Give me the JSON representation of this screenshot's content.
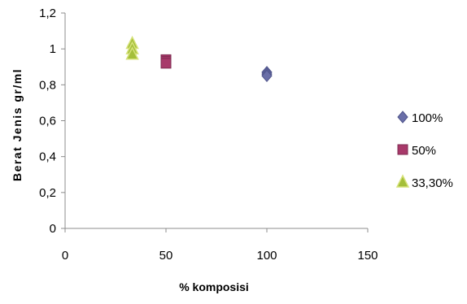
{
  "chart_data": {
    "type": "scatter",
    "title": "",
    "xlabel": "% komposisi",
    "ylabel": "Berat Jenis gr/ml",
    "xlim": [
      0,
      150
    ],
    "ylim": [
      0,
      1.2
    ],
    "x_ticks": [
      {
        "value": 0,
        "label": "0"
      },
      {
        "value": 50,
        "label": "50"
      },
      {
        "value": 100,
        "label": "100"
      },
      {
        "value": 150,
        "label": "150"
      }
    ],
    "y_ticks": [
      {
        "value": 0,
        "label": "0"
      },
      {
        "value": 0.2,
        "label": "0,2"
      },
      {
        "value": 0.4,
        "label": "0,4"
      },
      {
        "value": 0.6,
        "label": "0,6"
      },
      {
        "value": 0.8,
        "label": "0,8"
      },
      {
        "value": 1.0,
        "label": "1"
      },
      {
        "value": 1.2,
        "label": "1,2"
      }
    ],
    "grid": false,
    "legend_position": "right",
    "series": [
      {
        "name": "100%",
        "marker": "diamond",
        "color": "#6A6FA8",
        "edge_color": "#4E538A",
        "points": [
          {
            "x": 100,
            "y": 0.87
          },
          {
            "x": 100,
            "y": 0.86
          },
          {
            "x": 100,
            "y": 0.85
          }
        ]
      },
      {
        "name": "50%",
        "marker": "square",
        "color": "#A8396A",
        "edge_color": "#7E2A50",
        "points": [
          {
            "x": 50,
            "y": 0.94
          },
          {
            "x": 50,
            "y": 0.93
          },
          {
            "x": 50,
            "y": 0.92
          }
        ]
      },
      {
        "name": "33,30%",
        "marker": "triangle",
        "color": "#A4BF3A",
        "edge_color": "#D6E27A",
        "points": [
          {
            "x": 33.3,
            "y": 1.03
          },
          {
            "x": 33.3,
            "y": 1.0
          },
          {
            "x": 33.3,
            "y": 0.97
          }
        ]
      }
    ]
  }
}
